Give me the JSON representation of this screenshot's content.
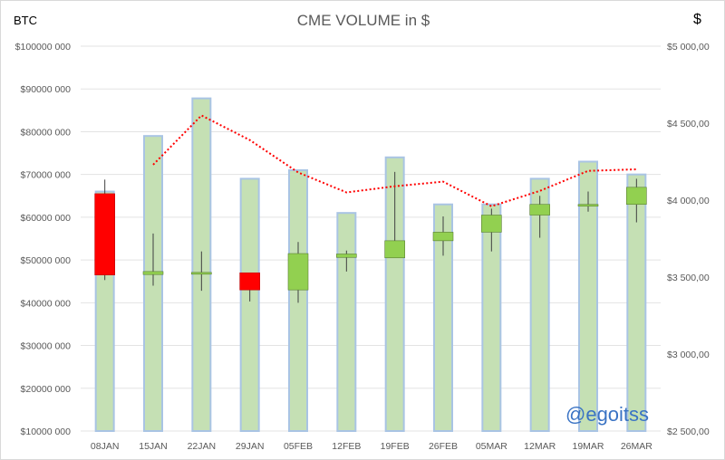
{
  "header": {
    "title": "CME VOLUME in $",
    "left_label": "BTC",
    "right_label": "$"
  },
  "watermark": "@egoitss",
  "colors": {
    "volume_bar_fill": "#c5e0b4",
    "volume_bar_stroke": "#a9c4e4",
    "candle_up": "#92d050",
    "candle_down": "#ff0000",
    "line": "#ff0000",
    "grid": "#e3e3e3"
  },
  "chart_data": {
    "type": "bar",
    "title": "CME VOLUME in $",
    "categories": [
      "08JAN",
      "15JAN",
      "22JAN",
      "29JAN",
      "05FEB",
      "12FEB",
      "19FEB",
      "26FEB",
      "05MAR",
      "12MAR",
      "19MAR",
      "26MAR"
    ],
    "left_axis": {
      "label": "BTC",
      "min": 10000000,
      "max": 100000000,
      "step": 10000000,
      "tick_labels": [
        "$10000 000",
        "$20000 000",
        "$30000 000",
        "$40000 000",
        "$50000 000",
        "$60000 000",
        "$70000 000",
        "$80000 000",
        "$90000 000",
        "$100000 000"
      ]
    },
    "right_axis": {
      "label": "$",
      "min": 2500,
      "max": 5000,
      "step": 500,
      "tick_labels": [
        "$2 500,00",
        "$3 000,00",
        "$3 500,00",
        "$4 000,00",
        "$4 500,00",
        "$5 000,00"
      ]
    },
    "series": [
      {
        "kind": "volume_bars",
        "axis": "left",
        "values": [
          66000000,
          79000000,
          87800000,
          69000000,
          71000000,
          61000000,
          74000000,
          63000000,
          63000000,
          69000000,
          73000000,
          70000000
        ]
      },
      {
        "kind": "line",
        "axis": "right",
        "values": [
          null,
          4230,
          4550,
          4390,
          4180,
          4050,
          4090,
          4120,
          3960,
          4060,
          4190,
          4200
        ]
      },
      {
        "kind": "candlestick",
        "axis": "left",
        "open": [
          65500000,
          46600000,
          47100000,
          47000000,
          43000000,
          50600000,
          50500000,
          54500000,
          56500000,
          60500000,
          62800000,
          63000000
        ],
        "close": [
          46500000,
          47300000,
          47100000,
          43000000,
          51500000,
          51400000,
          54500000,
          56500000,
          60500000,
          63000000,
          63000000,
          67000000
        ],
        "high": [
          68800000,
          56200000,
          52000000,
          47000000,
          54200000,
          52200000,
          70600000,
          60200000,
          62000000,
          65000000,
          66000000,
          69000000
        ],
        "low": [
          45300000,
          44000000,
          42800000,
          40300000,
          40000000,
          47300000,
          50500000,
          51000000,
          52000000,
          55200000,
          61300000,
          58800000
        ]
      }
    ],
    "grid": true,
    "legend": "none"
  }
}
